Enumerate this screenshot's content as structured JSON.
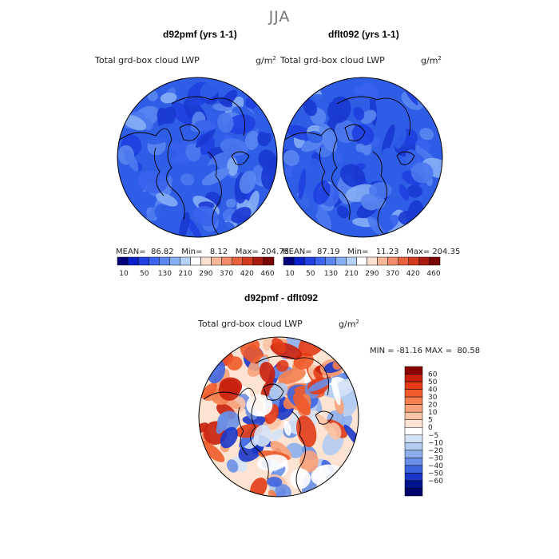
{
  "season": "JJA",
  "panels": [
    {
      "title": "d92pmf (yrs 1-1)",
      "variable": "Total grd-box cloud LWP",
      "units": "g/m",
      "units_exp": "2",
      "mean_label": "MEAN=",
      "mean": "86.82",
      "min_label": "Min=",
      "min": "8.12",
      "max_label": "Max=",
      "max": "204.75"
    },
    {
      "title": "dflt092 (yrs 1-1)",
      "variable": "Total grd-box cloud LWP",
      "units": "g/m",
      "units_exp": "2",
      "mean_label": "MEAN=",
      "mean": "87.19",
      "min_label": "Min=",
      "min": "11.23",
      "max_label": "Max=",
      "max": "204.35"
    }
  ],
  "diff": {
    "title": "d92pmf - dflt092",
    "variable": "Total grd-box cloud LWP",
    "units": "g/m",
    "units_exp": "2",
    "minmax_text": "MIN = -81.16 MAX =  80.58"
  },
  "chart_data": [
    {
      "type": "heatmap",
      "projection": "north-polar-stereographic",
      "title": "d92pmf (yrs 1-1)",
      "variable": "Total grd-box cloud LWP",
      "units": "g/m^2",
      "mean": 86.82,
      "min": 8.12,
      "max": 204.75,
      "colorbar": {
        "orientation": "horizontal",
        "tick_labels": [
          "10",
          "50",
          "130",
          "210",
          "290",
          "370",
          "420",
          "460"
        ],
        "levels": [
          10,
          30,
          50,
          90,
          130,
          170,
          210,
          250,
          290,
          330,
          370,
          400,
          420,
          440,
          460
        ],
        "colors": [
          "#00007a",
          "#0a1fc9",
          "#1f3fe0",
          "#3b63ec",
          "#5b86f0",
          "#85aef5",
          "#b6d1fa",
          "#ffffff",
          "#fde0cf",
          "#f8b898",
          "#f28c68",
          "#e8613e",
          "#d23b1f",
          "#aa1a0e",
          "#7a0404"
        ]
      }
    },
    {
      "type": "heatmap",
      "projection": "north-polar-stereographic",
      "title": "dflt092 (yrs 1-1)",
      "variable": "Total grd-box cloud LWP",
      "units": "g/m^2",
      "mean": 87.19,
      "min": 11.23,
      "max": 204.35,
      "colorbar": {
        "orientation": "horizontal",
        "tick_labels": [
          "10",
          "50",
          "130",
          "210",
          "290",
          "370",
          "420",
          "460"
        ],
        "levels": [
          10,
          30,
          50,
          90,
          130,
          170,
          210,
          250,
          290,
          330,
          370,
          400,
          420,
          440,
          460
        ],
        "colors": [
          "#00007a",
          "#0a1fc9",
          "#1f3fe0",
          "#3b63ec",
          "#5b86f0",
          "#85aef5",
          "#b6d1fa",
          "#ffffff",
          "#fde0cf",
          "#f8b898",
          "#f28c68",
          "#e8613e",
          "#d23b1f",
          "#aa1a0e",
          "#7a0404"
        ]
      }
    },
    {
      "type": "heatmap",
      "projection": "north-polar-stereographic",
      "title": "d92pmf - dflt092",
      "variable": "Total grd-box cloud LWP",
      "units": "g/m^2",
      "min": -81.16,
      "max": 80.58,
      "colorbar": {
        "orientation": "vertical",
        "tick_labels": [
          "60",
          "50",
          "40",
          "30",
          "20",
          "10",
          "5",
          "0",
          "-5",
          "-10",
          "-20",
          "-30",
          "-40",
          "-50",
          "-60"
        ],
        "colors": [
          "#8b0000",
          "#c8200c",
          "#e23b16",
          "#f05a2a",
          "#f47f4f",
          "#f7a27a",
          "#f9c4a6",
          "#fde4d2",
          "#ffffff",
          "#d4e2f7",
          "#b2ccf2",
          "#8cafec",
          "#6a8fe6",
          "#3e64e0",
          "#1b37c8",
          "#001490",
          "#00006e"
        ]
      }
    }
  ]
}
